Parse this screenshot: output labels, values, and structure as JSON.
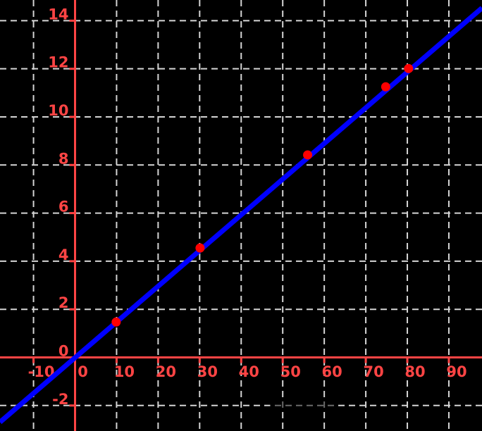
{
  "style": {
    "background": "#000000",
    "grid_color": "#d5d5d5",
    "axis_color": "#ff4444",
    "tick_label_color": "#ff4444",
    "line_color": "#0000ff",
    "point_color": "#ff0000"
  },
  "chart_data": {
    "type": "scatter",
    "title": "",
    "xlabel": "",
    "ylabel": "",
    "grid": true,
    "legend": false,
    "x_ticks": [
      -10,
      0,
      10,
      20,
      30,
      40,
      50,
      60,
      70,
      80,
      90
    ],
    "y_ticks": [
      -2,
      0,
      2,
      4,
      6,
      8,
      10,
      12,
      14
    ],
    "xlim": [
      -18.07,
      97.98
    ],
    "ylim": [
      -3.06,
      14.86
    ],
    "points": [
      {
        "x": 9.9,
        "y": 1.47
      },
      {
        "x": 30.1,
        "y": 4.55
      },
      {
        "x": 56.0,
        "y": 8.42
      },
      {
        "x": 74.8,
        "y": 11.25
      },
      {
        "x": 80.3,
        "y": 12.01
      }
    ],
    "fit_line": {
      "slope": 0.1484,
      "intercept": -0.01
    }
  }
}
